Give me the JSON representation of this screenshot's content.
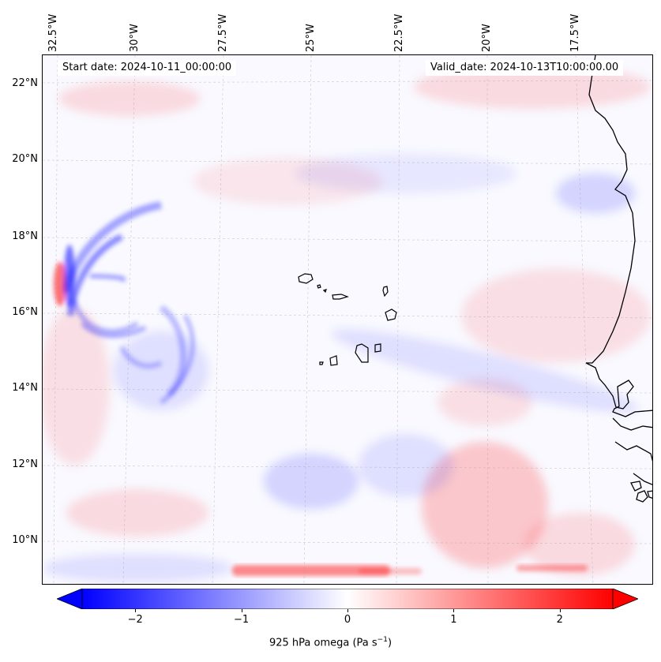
{
  "map": {
    "lon_labels": [
      "32.5°W",
      "30°W",
      "27.5°W",
      "25°W",
      "22.5°W",
      "20°W",
      "17.5°W"
    ],
    "lat_labels": [
      "22°N",
      "20°N",
      "18°N",
      "16°N",
      "14°N",
      "12°N",
      "10°N"
    ],
    "start_date": "Start date: 2024-10-11_00:00:00",
    "valid_date": "Valid_date: 2024-10-13T10:00:00.00",
    "field": "925 hPa omega",
    "colormap": "bwr",
    "extend": "both",
    "colors": {
      "negative": "#0000ff",
      "neutral": "#ffffff",
      "positive": "#ff0000",
      "coastline": "#000000"
    }
  },
  "colorbar": {
    "ticks": [
      "−2",
      "−1",
      "0",
      "1",
      "2"
    ],
    "range": [
      -2.5,
      2.5
    ],
    "label_main": "925 hPa omega (Pa s",
    "label_sup": "−1",
    "label_end": ")"
  }
}
